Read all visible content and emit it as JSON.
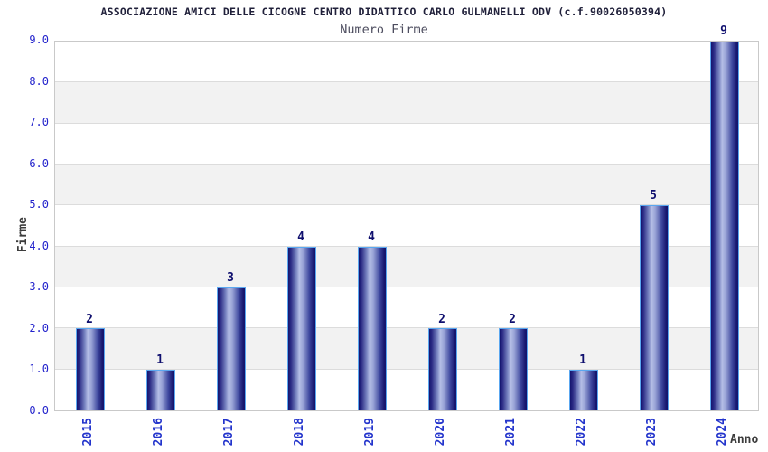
{
  "chart_data": {
    "type": "bar",
    "title": "ASSOCIAZIONE AMICI DELLE CICOGNE CENTRO DIDATTICO CARLO GULMANELLI ODV (c.f.90026050394)",
    "subtitle": "Numero Firme",
    "xlabel": "Anno",
    "ylabel": "Firme",
    "categories": [
      "2015",
      "2016",
      "2017",
      "2018",
      "2019",
      "2020",
      "2021",
      "2022",
      "2023",
      "2024"
    ],
    "values": [
      2,
      1,
      3,
      4,
      4,
      2,
      2,
      1,
      5,
      9
    ],
    "value_labels": [
      "2",
      "1",
      "3",
      "4",
      "4",
      "2",
      "2",
      "1",
      "5",
      "9"
    ],
    "ylim": [
      0,
      9
    ],
    "ytick_labels": [
      "0.0",
      "1.0",
      "2.0",
      "3.0",
      "4.0",
      "5.0",
      "6.0",
      "7.0",
      "8.0",
      "9.0"
    ],
    "grid": "horizontal-gridlines-on",
    "legend": "none",
    "layout_hints": {
      "banded_background": "alternating white and light-gray horizontal unit bands",
      "x_tick_rotation": "90deg vertical reading bottom-to-top",
      "bar_style": "vertical cylinder gradient navy with light blue outline"
    },
    "colors": {
      "title_text": "#20203a",
      "subtitle_text": "#4c4c5e",
      "tick_label_blue": "#2323cc",
      "x_tick_label_blue": "#2334cc",
      "axis_label_gray": "#3c3c3c",
      "value_label_navy": "#0f0f6e",
      "bar_dark_navy": "#14146e",
      "bar_highlight": "#b5bee6",
      "bar_outline": "#5aa7f0",
      "band_gray": "#f2f2f2",
      "band_white": "#ffffff",
      "gridline": "#dcdcdc",
      "plot_border": "#c9c9c9",
      "background": "#ffffff"
    }
  }
}
